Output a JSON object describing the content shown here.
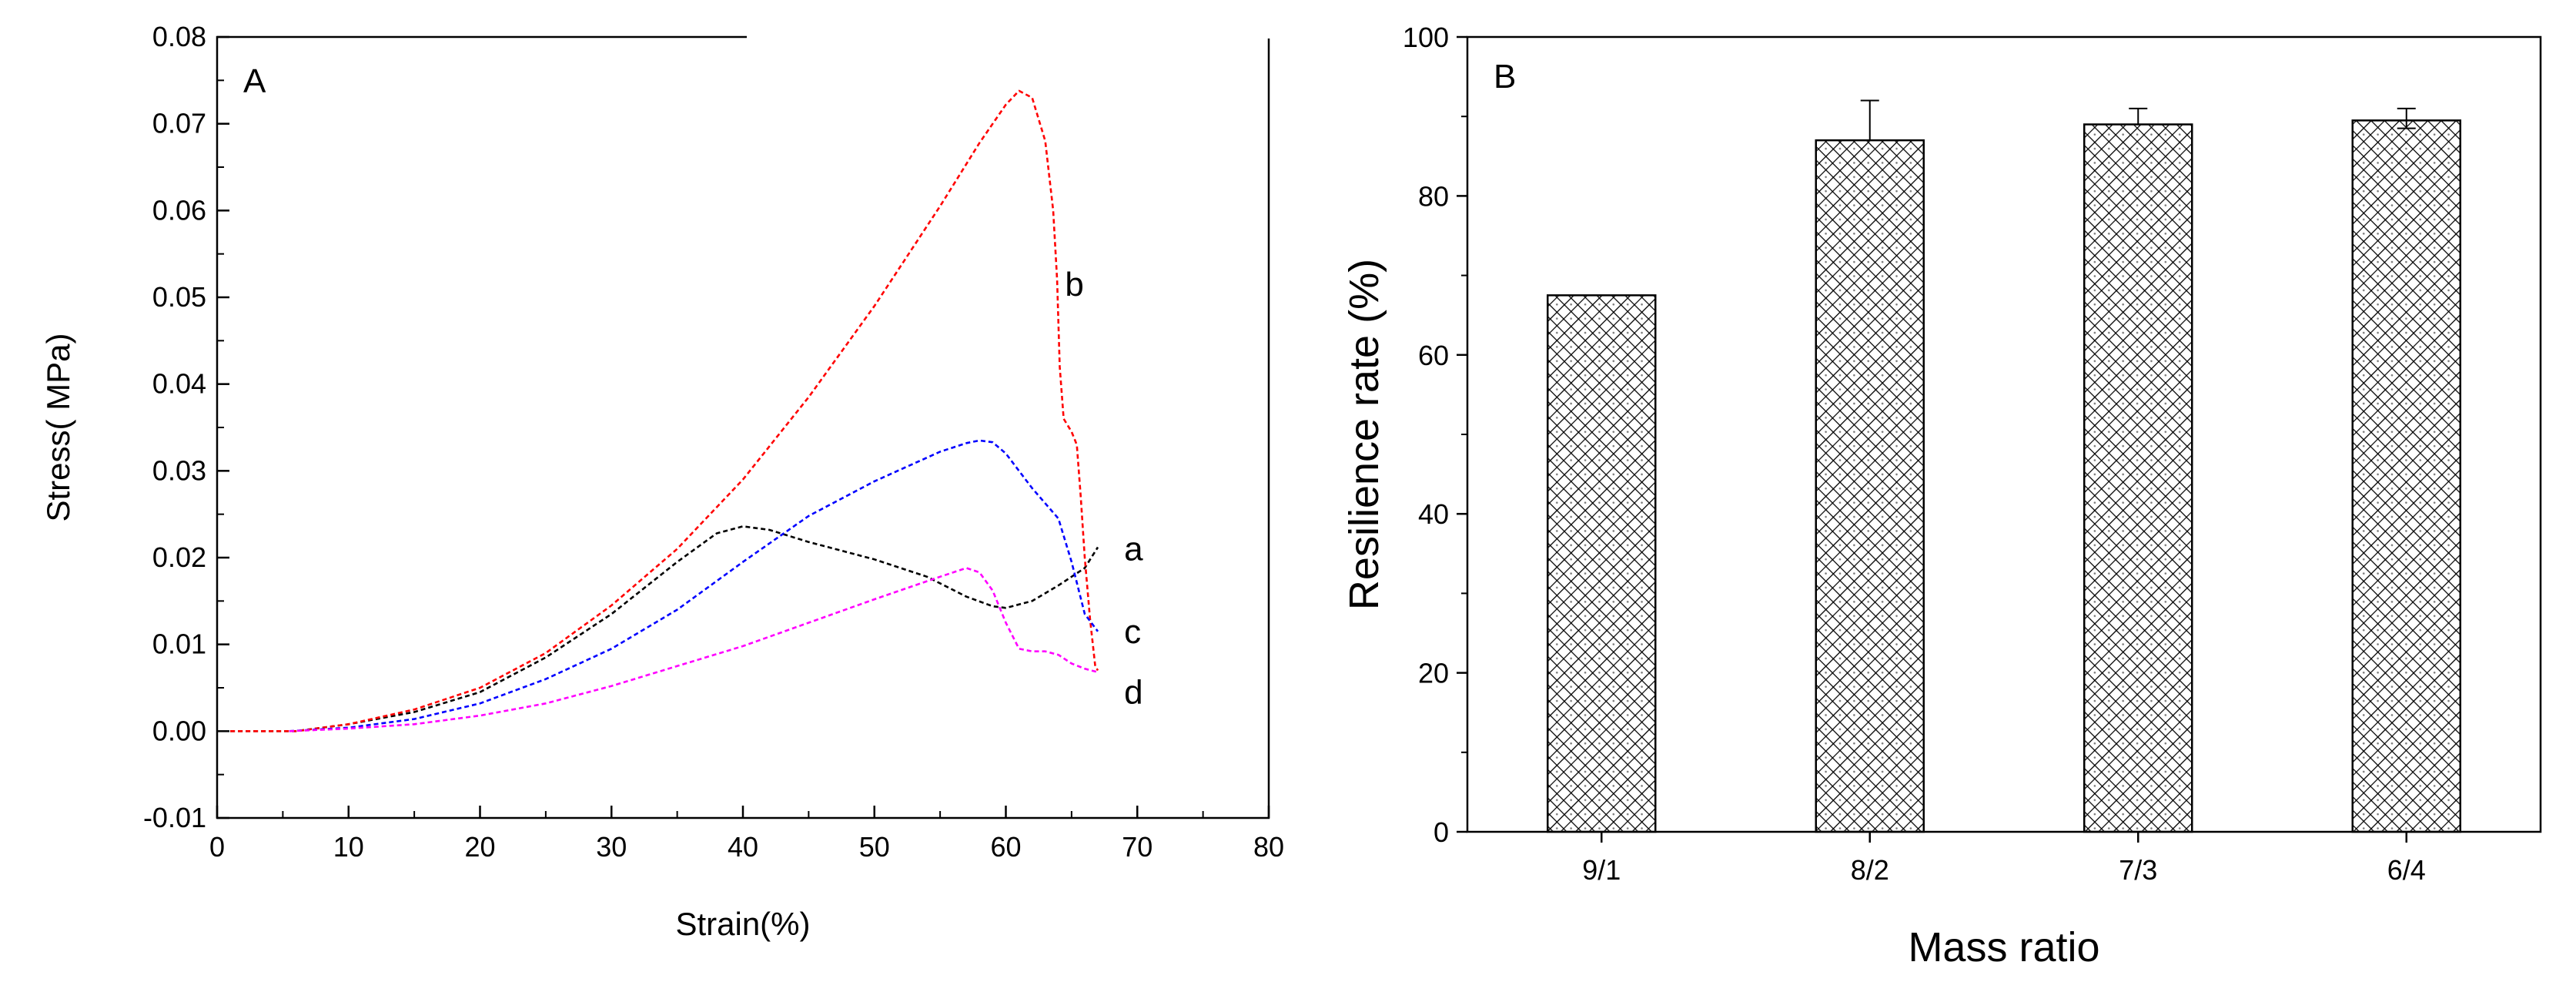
{
  "chart_data": [
    {
      "type": "line",
      "panel_label": "A",
      "xlabel": "Strain(%)",
      "ylabel": "Stress( MPa)",
      "xlim": [
        0,
        80
      ],
      "ylim": [
        -0.01,
        0.08
      ],
      "x_ticks": [
        0,
        10,
        20,
        30,
        40,
        50,
        60,
        70,
        80
      ],
      "y_ticks": [
        -0.01,
        0.0,
        0.01,
        0.02,
        0.03,
        0.04,
        0.05,
        0.06,
        0.07,
        0.08
      ],
      "x_tick_labels": [
        "0",
        "10",
        "20",
        "30",
        "40",
        "50",
        "60",
        "70",
        "80"
      ],
      "y_tick_labels": [
        "-0.01",
        "0.00",
        "0.01",
        "0.02",
        "0.03",
        "0.04",
        "0.05",
        "0.06",
        "0.07",
        "0.08"
      ],
      "grid": false,
      "legend": "inline labels at curve ends",
      "series": [
        {
          "name": "a",
          "color": "#000000",
          "label_at": [
            69,
            0.021
          ],
          "points": [
            [
              1,
              0
            ],
            [
              6,
              0
            ],
            [
              10,
              0.0008
            ],
            [
              15,
              0.0022
            ],
            [
              20,
              0.0045
            ],
            [
              25,
              0.0085
            ],
            [
              30,
              0.0135
            ],
            [
              35,
              0.0195
            ],
            [
              38,
              0.0228
            ],
            [
              40,
              0.0236
            ],
            [
              42,
              0.0232
            ],
            [
              45,
              0.0218
            ],
            [
              50,
              0.0198
            ],
            [
              54,
              0.0178
            ],
            [
              57,
              0.0155
            ],
            [
              59,
              0.0144
            ],
            [
              60,
              0.0142
            ],
            [
              62,
              0.015
            ],
            [
              64,
              0.0168
            ],
            [
              66,
              0.0188
            ],
            [
              67,
              0.0212
            ]
          ]
        },
        {
          "name": "b",
          "color": "#ff0000",
          "label_at": [
            64.5,
            0.0515
          ],
          "points": [
            [
              1,
              0
            ],
            [
              6,
              0
            ],
            [
              10,
              0.0008
            ],
            [
              15,
              0.0025
            ],
            [
              20,
              0.005
            ],
            [
              25,
              0.009
            ],
            [
              30,
              0.0145
            ],
            [
              35,
              0.021
            ],
            [
              40,
              0.029
            ],
            [
              45,
              0.0385
            ],
            [
              50,
              0.049
            ],
            [
              55,
              0.0605
            ],
            [
              58,
              0.0678
            ],
            [
              60,
              0.0722
            ],
            [
              61,
              0.0738
            ],
            [
              62,
              0.073
            ],
            [
              63,
              0.068
            ],
            [
              63.6,
              0.06
            ],
            [
              63.9,
              0.052
            ],
            [
              64.1,
              0.042
            ],
            [
              64.4,
              0.036
            ],
            [
              65,
              0.0345
            ],
            [
              65.4,
              0.033
            ],
            [
              65.7,
              0.027
            ],
            [
              66,
              0.02
            ],
            [
              66.4,
              0.013
            ],
            [
              66.8,
              0.0075
            ],
            [
              67,
              0.007
            ]
          ]
        },
        {
          "name": "c",
          "color": "#0000ff",
          "label_at": [
            69,
            0.0115
          ],
          "points": [
            [
              5.5,
              0
            ],
            [
              10,
              0.0004
            ],
            [
              15,
              0.0014
            ],
            [
              20,
              0.0032
            ],
            [
              25,
              0.006
            ],
            [
              30,
              0.0095
            ],
            [
              35,
              0.014
            ],
            [
              40,
              0.0195
            ],
            [
              45,
              0.0248
            ],
            [
              50,
              0.0288
            ],
            [
              55,
              0.0322
            ],
            [
              57,
              0.0332
            ],
            [
              58,
              0.0335
            ],
            [
              59,
              0.0333
            ],
            [
              60,
              0.032
            ],
            [
              62,
              0.028
            ],
            [
              64,
              0.0245
            ],
            [
              65,
              0.0195
            ],
            [
              66,
              0.0135
            ],
            [
              67,
              0.0115
            ]
          ]
        },
        {
          "name": "d",
          "color": "#ff00ff",
          "label_at": [
            69,
            0.0045
          ],
          "points": [
            [
              5.5,
              0
            ],
            [
              10,
              0.0003
            ],
            [
              15,
              0.0008
            ],
            [
              20,
              0.0018
            ],
            [
              25,
              0.0032
            ],
            [
              30,
              0.0052
            ],
            [
              35,
              0.0075
            ],
            [
              40,
              0.0098
            ],
            [
              45,
              0.0125
            ],
            [
              50,
              0.0152
            ],
            [
              55,
              0.0178
            ],
            [
              57,
              0.0188
            ],
            [
              58,
              0.0183
            ],
            [
              59,
              0.0162
            ],
            [
              60,
              0.0125
            ],
            [
              61,
              0.0095
            ],
            [
              62,
              0.0092
            ],
            [
              63,
              0.0092
            ],
            [
              64,
              0.0088
            ],
            [
              65,
              0.0078
            ],
            [
              66,
              0.0072
            ],
            [
              67,
              0.0068
            ]
          ]
        }
      ]
    },
    {
      "type": "bar",
      "panel_label": "B",
      "xlabel": "Mass ratio",
      "ylabel": "Resilience rate (%)",
      "ylim": [
        0,
        100
      ],
      "y_ticks": [
        0,
        20,
        40,
        60,
        80,
        100
      ],
      "y_tick_labels": [
        "0",
        "20",
        "40",
        "60",
        "80",
        "100"
      ],
      "grid": false,
      "categories": [
        "9/1",
        "8/2",
        "7/3",
        "6/4"
      ],
      "values": [
        67.5,
        87.0,
        89.0,
        89.5
      ],
      "error_up": [
        0,
        92.0,
        91.0,
        91.0
      ],
      "error_down": [
        0,
        87.0,
        89.0,
        88.5
      ],
      "bar_fill": "crosshatch with dotted diamonds"
    }
  ]
}
